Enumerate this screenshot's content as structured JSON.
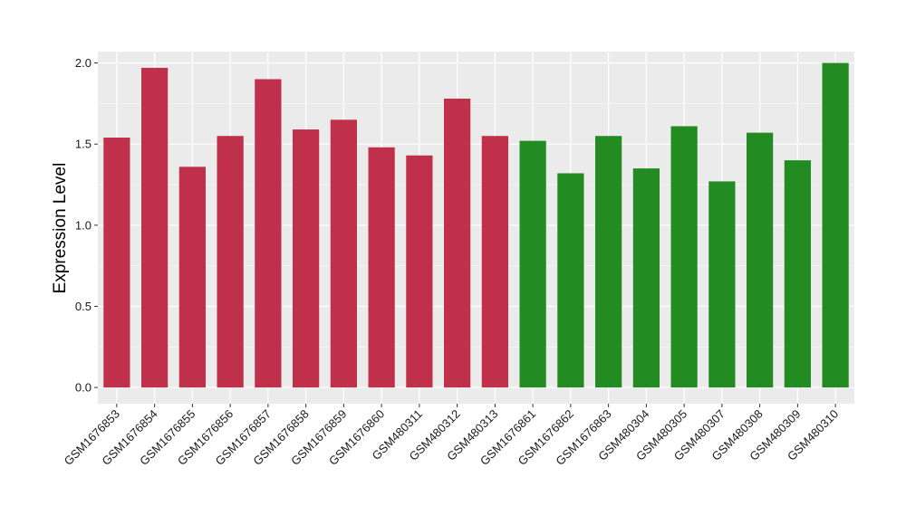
{
  "chart_data": {
    "type": "bar",
    "title": "",
    "xlabel": "",
    "ylabel": "Expression Level",
    "ylim": [
      -0.1,
      2.07
    ],
    "yticks": [
      "0.0",
      "0.5",
      "1.0",
      "1.5",
      "2.0"
    ],
    "grid": true,
    "categories": [
      "GSM1676853",
      "GSM1676854",
      "GSM1676855",
      "GSM1676856",
      "GSM1676857",
      "GSM1676858",
      "GSM1676859",
      "GSM1676860",
      "GSM480311",
      "GSM480312",
      "GSM480313",
      "GSM1676861",
      "GSM1676862",
      "GSM1676863",
      "GSM480304",
      "GSM480305",
      "GSM480307",
      "GSM480308",
      "GSM480309",
      "GSM480310"
    ],
    "values": [
      1.54,
      1.97,
      1.36,
      1.55,
      1.9,
      1.59,
      1.65,
      1.48,
      1.43,
      1.78,
      1.55,
      1.52,
      1.32,
      1.55,
      1.35,
      1.61,
      1.27,
      1.57,
      1.4,
      2.0
    ],
    "bar_colors": [
      "#c0304a",
      "#c0304a",
      "#c0304a",
      "#c0304a",
      "#c0304a",
      "#c0304a",
      "#c0304a",
      "#c0304a",
      "#c0304a",
      "#c0304a",
      "#c0304a",
      "#228b22",
      "#228b22",
      "#228b22",
      "#228b22",
      "#228b22",
      "#228b22",
      "#228b22",
      "#228b22",
      "#228b22"
    ],
    "panel_background": "#ebebeb",
    "gridline_color": "#ffffff"
  }
}
